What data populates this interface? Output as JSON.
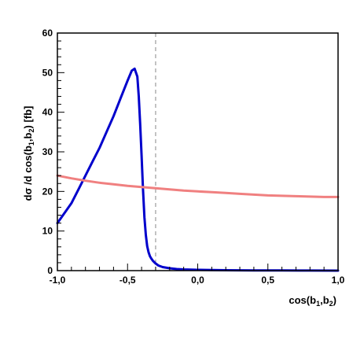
{
  "chart_data": {
    "type": "line",
    "xlabel": "cos(b1,b2)",
    "xlabel_parts": {
      "main": "cos(b",
      "sub1": "1",
      "mid": ",b",
      "sub2": "2",
      "end": ")"
    },
    "ylabel": "dσ /d cos(b1,b2) [fb]",
    "ylabel_parts": {
      "main": "dσ /d cos(b",
      "sub1": "1",
      "mid": ",b",
      "sub2": "2",
      "end": ") [fb]"
    },
    "xlim": [
      -1.0,
      1.0
    ],
    "ylim": [
      0,
      60
    ],
    "x_ticks": [
      -1.0,
      -0.5,
      0.0,
      0.5,
      1.0
    ],
    "x_tick_labels": [
      "-1,0",
      "-0,5",
      "0,0",
      "0,5",
      "1,0"
    ],
    "y_ticks": [
      0,
      10,
      20,
      30,
      40,
      50,
      60
    ],
    "y_tick_labels": [
      "0",
      "10",
      "20",
      "30",
      "40",
      "50",
      "60"
    ],
    "grid": false,
    "vertical_line": {
      "x": -0.3,
      "style": "dashed",
      "color": "#888888"
    },
    "series": [
      {
        "color": "#0000cc",
        "x": [
          -1.0,
          -0.95,
          -0.9,
          -0.85,
          -0.8,
          -0.75,
          -0.7,
          -0.65,
          -0.6,
          -0.55,
          -0.5,
          -0.47,
          -0.45,
          -0.43,
          -0.42,
          -0.41,
          -0.4,
          -0.39,
          -0.38,
          -0.37,
          -0.36,
          -0.35,
          -0.34,
          -0.33,
          -0.32,
          -0.3,
          -0.28,
          -0.25,
          -0.2,
          -0.15,
          -0.1,
          0.0,
          0.2,
          0.4,
          0.6,
          0.8,
          1.0
        ],
        "y": [
          12.0,
          14.5,
          17.0,
          20.5,
          24.0,
          27.5,
          31.0,
          35.0,
          39.0,
          43.5,
          48.0,
          50.5,
          51.0,
          49.0,
          44.0,
          37.0,
          29.0,
          20.5,
          13.5,
          9.0,
          6.2,
          4.6,
          3.6,
          3.0,
          2.5,
          1.8,
          1.3,
          0.9,
          0.6,
          0.4,
          0.3,
          0.2,
          0.1,
          0.05,
          0.03,
          0.02,
          0.0
        ]
      },
      {
        "color": "#f08080",
        "x": [
          -1.0,
          -0.9,
          -0.8,
          -0.7,
          -0.6,
          -0.5,
          -0.4,
          -0.3,
          -0.2,
          -0.1,
          0.0,
          0.1,
          0.2,
          0.3,
          0.4,
          0.5,
          0.6,
          0.7,
          0.8,
          0.9,
          1.0
        ],
        "y": [
          24.0,
          23.3,
          22.7,
          22.2,
          21.8,
          21.4,
          21.1,
          20.8,
          20.5,
          20.2,
          20.0,
          19.8,
          19.6,
          19.4,
          19.2,
          19.0,
          18.9,
          18.8,
          18.7,
          18.6,
          18.6
        ]
      }
    ]
  }
}
